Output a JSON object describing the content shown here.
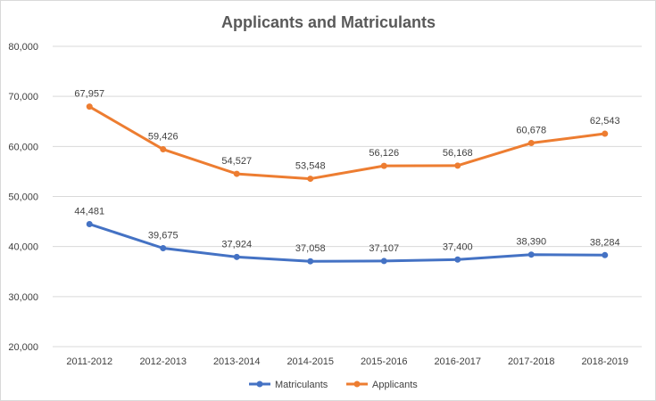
{
  "chart_data": {
    "type": "line",
    "title": "Applicants and Matriculants",
    "xlabel": "",
    "ylabel": "",
    "categories": [
      "2011-2012",
      "2012-2013",
      "2013-2014",
      "2014-2015",
      "2015-2016",
      "2016-2017",
      "2017-2018",
      "2018-2019"
    ],
    "ylim": [
      20000,
      80000
    ],
    "yticks": [
      20000,
      30000,
      40000,
      50000,
      60000,
      70000,
      80000
    ],
    "ytick_labels": [
      "20,000",
      "30,000",
      "40,000",
      "50,000",
      "60,000",
      "70,000",
      "80,000"
    ],
    "grid": true,
    "legend_position": "bottom",
    "series": [
      {
        "name": "Matriculants",
        "color": "#4472c4",
        "values": [
          44481,
          39675,
          37924,
          37058,
          37107,
          37400,
          38390,
          38284
        ],
        "labels": [
          "44,481",
          "39,675",
          "37,924",
          "37,058",
          "37,107",
          "37,400",
          "38,390",
          "38,284"
        ]
      },
      {
        "name": "Applicants",
        "color": "#ed7d31",
        "values": [
          67957,
          59426,
          54527,
          53548,
          56126,
          56168,
          60678,
          62543
        ],
        "labels": [
          "67,957",
          "59,426",
          "54,527",
          "53,548",
          "56,126",
          "56,168",
          "60,678",
          "62,543"
        ]
      }
    ]
  }
}
